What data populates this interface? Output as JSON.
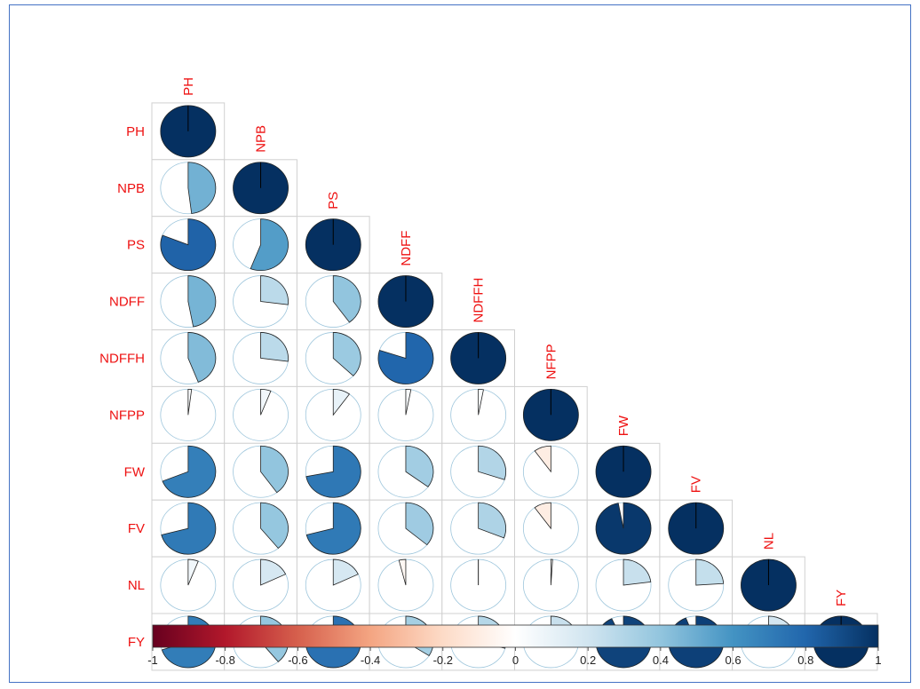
{
  "chart_data": {
    "type": "heatmap",
    "subtype": "correlation-pie-lower-triangle",
    "title": "",
    "variables": [
      "PH",
      "NPB",
      "PS",
      "NDFF",
      "NDFFH",
      "NFPP",
      "FW",
      "FV",
      "NL",
      "FY"
    ],
    "matrix": [
      [
        1.0,
        0.48,
        0.81,
        0.47,
        0.44,
        0.02,
        0.69,
        0.71,
        0.06,
        0.7
      ],
      [
        0.48,
        1.0,
        0.56,
        0.27,
        0.27,
        0.06,
        0.4,
        0.39,
        0.18,
        0.39
      ],
      [
        0.81,
        0.56,
        1.0,
        0.4,
        0.37,
        0.1,
        0.72,
        0.71,
        0.18,
        0.75
      ],
      [
        0.47,
        0.27,
        0.4,
        1.0,
        0.8,
        0.03,
        0.35,
        0.36,
        -0.04,
        0.34
      ],
      [
        0.44,
        0.27,
        0.37,
        0.8,
        1.0,
        0.03,
        0.3,
        0.31,
        0.0,
        0.29
      ],
      [
        0.02,
        0.06,
        0.1,
        0.03,
        0.03,
        1.0,
        -0.1,
        -0.1,
        0.01,
        0.23
      ],
      [
        0.69,
        0.4,
        0.72,
        0.35,
        0.3,
        -0.1,
        1.0,
        0.97,
        0.23,
        0.93
      ],
      [
        0.71,
        0.39,
        0.71,
        0.36,
        0.31,
        -0.1,
        0.97,
        1.0,
        0.24,
        0.94
      ],
      [
        0.06,
        0.18,
        0.18,
        -0.04,
        0.0,
        0.01,
        0.23,
        0.24,
        1.0,
        0.19
      ],
      [
        0.7,
        0.39,
        0.75,
        0.34,
        0.29,
        0.23,
        0.93,
        0.94,
        0.19,
        1.0
      ]
    ],
    "colorbar": {
      "range": [
        -1,
        1
      ],
      "ticks": [
        "-1",
        "-0.8",
        "-0.6",
        "-0.4",
        "-0.2",
        "0",
        "0.2",
        "0.4",
        "0.6",
        "0.8",
        "1"
      ],
      "placement": "bottom"
    },
    "colors": {
      "negative_end": "#67001f",
      "neutral": "#ffffff",
      "positive_end": "#053061",
      "label": "#ee1111",
      "border": "#4472c4"
    }
  }
}
